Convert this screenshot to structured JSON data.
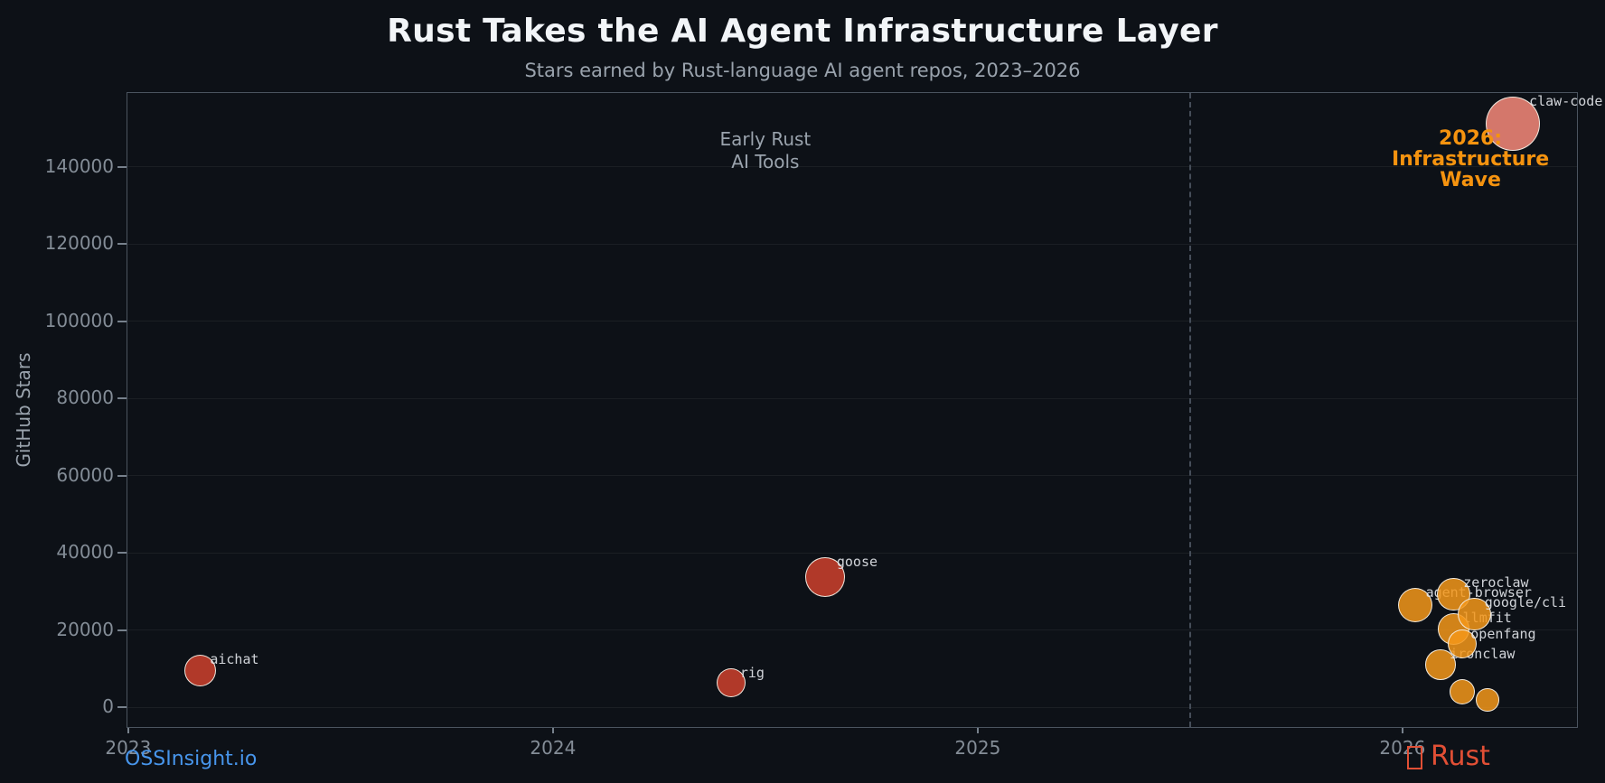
{
  "colors": {
    "background": "#0d1117",
    "title": "#f2f5f8",
    "muted": "#9aa3ad",
    "tick": "#848d97",
    "grid": "rgba(255,255,255,0.06)",
    "spine": "#4b545f",
    "vline": "#454d59",
    "early_red": "#cf412d",
    "wave_orange": "#f5981a",
    "peak_salmon": "#f8897a",
    "bubble_stroke": "rgba(243,238,229,0.95)",
    "bubble_alpha": 0.85,
    "label_text": "rgba(228,232,236,0.9)",
    "brand_blue": "#4795eb",
    "rust_red": "#e14f35",
    "anno_orange": "#f5930f"
  },
  "footer": {
    "brand": "OSSInsight.io",
    "rust_label": "Rust"
  },
  "chart_data": {
    "type": "scatter",
    "title": "Rust Takes the AI Agent Infrastructure Layer",
    "subtitle": "Stars earned by Rust-language AI agent repos, 2023–2026",
    "xlabel": "",
    "ylabel": "GitHub Stars",
    "xlim": [
      2022.996,
      2026.413
    ],
    "ylim": [
      -5380,
      159300
    ],
    "x_ticks": [
      2023,
      2024,
      2025,
      2026
    ],
    "y_ticks": [
      0,
      20000,
      40000,
      60000,
      80000,
      100000,
      120000,
      140000
    ],
    "grid": "horizontal",
    "legend": "none",
    "dashed_vline_x": 2025.5,
    "annotations": [
      {
        "text": "Early Rust\nAI Tools",
        "x": 2024.5,
        "y": 150000,
        "style": "gray"
      },
      {
        "text": "2026: Infrastructure\nWave",
        "x": 2026.16,
        "y": 150000,
        "style": "orange"
      }
    ],
    "points": [
      {
        "label": "aichat",
        "x": 2023.17,
        "y": 9400,
        "r": 17.6,
        "color": "early_red"
      },
      {
        "label": "rig",
        "x": 2024.42,
        "y": 6400,
        "r": 16.0,
        "color": "early_red"
      },
      {
        "label": "goose",
        "x": 2024.64,
        "y": 33800,
        "r": 22.0,
        "color": "early_red"
      },
      {
        "label": "agent-browser",
        "x": 2026.03,
        "y": 26400,
        "r": 19.3,
        "color": "wave_orange"
      },
      {
        "label": "llmfit",
        "x": 2026.12,
        "y": 20200,
        "r": 17.3,
        "color": "wave_orange"
      },
      {
        "label": "ironclaw",
        "x": 2026.09,
        "y": 11000,
        "r": 16.7,
        "color": "wave_orange"
      },
      {
        "label": "zeroclaw",
        "x": 2026.12,
        "y": 29200,
        "r": 18.3,
        "color": "wave_orange"
      },
      {
        "label": "google/cli",
        "x": 2026.17,
        "y": 24100,
        "r": 18.3,
        "color": "wave_orange"
      },
      {
        "label": "openfang",
        "x": 2026.14,
        "y": 16300,
        "r": 16.0,
        "color": "wave_orange"
      },
      {
        "label": "",
        "x": 2026.14,
        "y": 4000,
        "r": 14.0,
        "color": "wave_orange"
      },
      {
        "label": "",
        "x": 2026.2,
        "y": 1900,
        "r": 12.7,
        "color": "wave_orange"
      },
      {
        "label": "claw-code",
        "x": 2026.26,
        "y": 151200,
        "r": 30.0,
        "color": "peak_salmon"
      }
    ]
  }
}
